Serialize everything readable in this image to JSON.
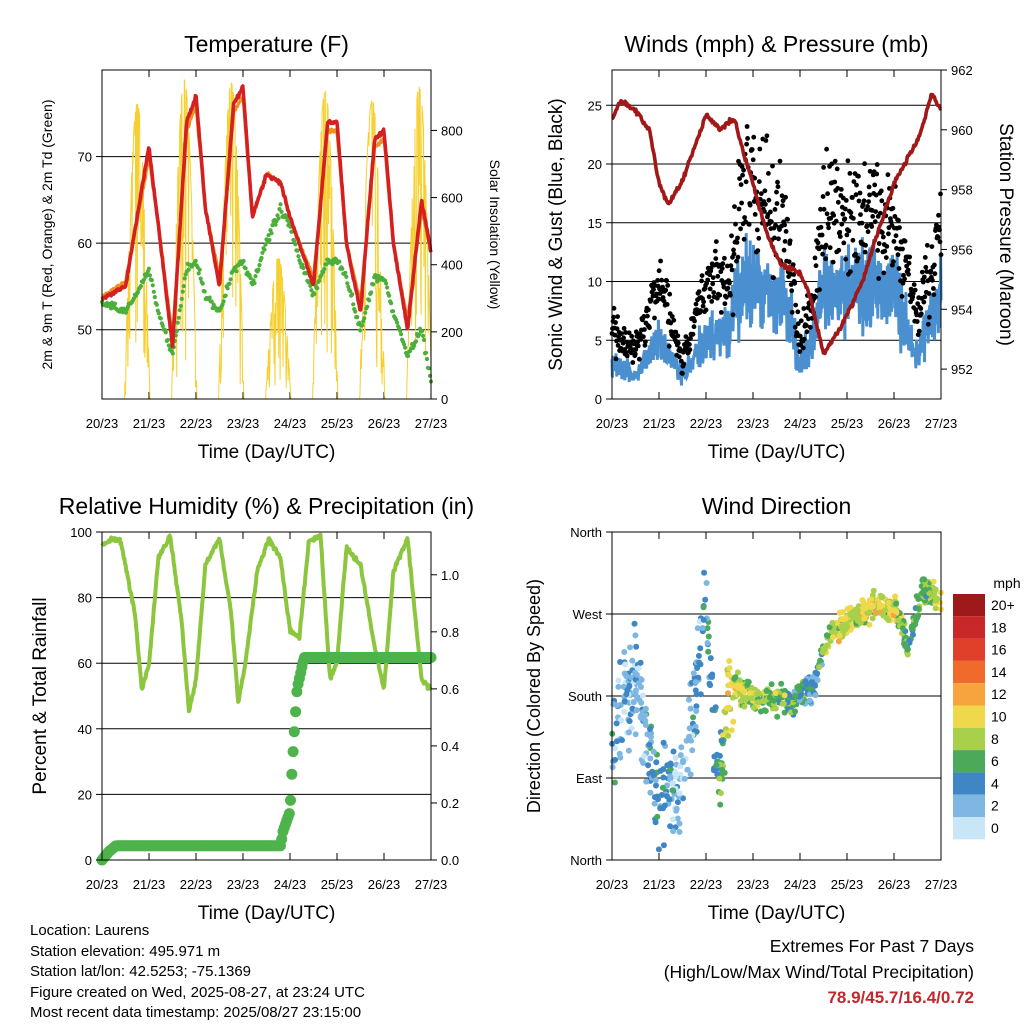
{
  "time_ticks": [
    "20/23",
    "21/23",
    "22/23",
    "23/23",
    "24/23",
    "25/23",
    "26/23",
    "27/23"
  ],
  "colors": {
    "temp2m": "#d42020",
    "temp9m": "#f09020",
    "dewpoint": "#4caf3a",
    "solar": "#f5d030",
    "wind": "#4a90d0",
    "gust": "#000000",
    "pressure": "#a01818",
    "rh": "#8cc63f",
    "precip": "#4db34a",
    "extremes": "#c0282d"
  },
  "info": {
    "location": "Location: Laurens",
    "elevation": "Station elevation: 495.971 m",
    "latlon": "Station lat/lon: 42.5253; -75.1369",
    "created": "Figure created on Wed, 2025-08-27, at 23:24 UTC",
    "latest": "Most recent data timestamp: 2025/08/27 23:15:00"
  },
  "extremes": {
    "title": "Extremes For Past 7 Days",
    "subtitle": "(High/Low/Max Wind/Total Precipitation)",
    "values": "78.9/45.7/16.4/0.72"
  },
  "chart_data": [
    {
      "type": "line",
      "title": "Temperature (F)",
      "xlabel": "Time (Day/UTC)",
      "ylabel": "2m & 9m T (Red, Orange) & 2m Td (Green)",
      "ylabel_right": "Solar Insolation (Yellow)",
      "ylim": [
        42,
        80
      ],
      "yticks": [
        50,
        60,
        70
      ],
      "ylim_right": [
        0,
        980
      ],
      "yticks_right": [
        0,
        200,
        400,
        600,
        800
      ],
      "x_days": [
        0,
        0.5,
        0.9,
        1.0,
        1.2,
        1.5,
        1.8,
        2.0,
        2.2,
        2.5,
        2.8,
        3.0,
        3.2,
        3.5,
        3.8,
        4.0,
        4.2,
        4.5,
        4.8,
        5.0,
        5.2,
        5.5,
        5.8,
        6.0,
        6.2,
        6.5,
        6.8,
        7.0
      ],
      "series": [
        {
          "name": "2m T",
          "values": [
            53.5,
            55,
            68,
            71,
            62,
            48,
            74,
            77,
            64,
            55,
            76,
            78,
            63,
            68,
            67,
            63,
            60,
            55,
            74,
            74,
            60,
            52,
            72,
            73,
            60,
            50,
            65,
            59
          ]
        },
        {
          "name": "9m T",
          "values": [
            53.8,
            55.5,
            67,
            70,
            62,
            49,
            73,
            76,
            64,
            56,
            75,
            77,
            63,
            68,
            67,
            63,
            60,
            56,
            73,
            73,
            60,
            53,
            71,
            72,
            60,
            51,
            64,
            59
          ]
        },
        {
          "name": "2m Td",
          "values": [
            53,
            52,
            56,
            57,
            52,
            47,
            57,
            58,
            54,
            52,
            57,
            58,
            55,
            60,
            64,
            62,
            58,
            54,
            58,
            58,
            56,
            50,
            56,
            56,
            52,
            47,
            50,
            44
          ]
        }
      ],
      "solar": {
        "days": [
          0.75,
          1.75,
          2.75,
          3.75,
          4.75,
          5.75,
          6.75
        ],
        "peaks": [
          880,
          950,
          940,
          420,
          920,
          890,
          930
        ]
      }
    },
    {
      "type": "scatter",
      "title": "Winds (mph) & Pressure (mb)",
      "xlabel": "Time (Day/UTC)",
      "ylabel": "Sonic Wind & Gust (Blue, Black)",
      "ylabel_right": "Station Pressure (Maroon)",
      "ylim": [
        0,
        28
      ],
      "yticks": [
        0,
        5,
        10,
        15,
        20,
        25
      ],
      "ylim_right": [
        951,
        962
      ],
      "yticks_right": [
        952,
        954,
        956,
        958,
        960,
        962
      ],
      "wind_days": [
        0,
        0.5,
        1.0,
        1.5,
        2.0,
        2.5,
        2.8,
        3.0,
        3.5,
        3.8,
        4.0,
        4.3,
        4.5,
        5.0,
        5.5,
        6.0,
        6.5,
        7.0
      ],
      "wind": [
        3,
        2,
        5,
        2,
        5,
        6,
        10,
        10,
        9,
        7,
        3,
        5,
        10,
        9,
        10,
        9,
        4,
        9
      ],
      "gust": [
        6,
        4,
        10,
        3,
        10,
        10,
        19,
        18,
        16,
        12,
        5,
        9,
        16,
        15,
        16,
        15,
        7,
        14
      ],
      "pressure_days": [
        0,
        0.2,
        0.5,
        0.8,
        1.0,
        1.2,
        1.5,
        2.0,
        2.3,
        2.6,
        2.8,
        3.0,
        3.3,
        3.6,
        4.0,
        4.2,
        4.5,
        4.9,
        5.3,
        5.7,
        6.0,
        6.2,
        6.5,
        6.8,
        7.0
      ],
      "pressure": [
        960.3,
        961,
        960.6,
        960.0,
        958.2,
        957.5,
        958.3,
        960.5,
        960.0,
        960.4,
        959.2,
        958.2,
        956.5,
        955.5,
        955.2,
        954.5,
        952.5,
        953.5,
        954.8,
        956.8,
        958.2,
        958.8,
        959.6,
        961.2,
        960.7
      ]
    },
    {
      "type": "line",
      "title": "Relative Humidity (%) & Precipitation (in)",
      "xlabel": "Time (Day/UTC)",
      "ylabel": "Percent & Total Rainfall",
      "ylim": [
        0,
        100
      ],
      "yticks": [
        0,
        20,
        40,
        60,
        80,
        100
      ],
      "ylim_right": [
        0,
        1.15
      ],
      "yticks_right": [
        0.0,
        0.2,
        0.4,
        0.6,
        0.8,
        1.0
      ],
      "yticklabels_right": [
        "0.0",
        "0.2",
        "0.4",
        "0.6",
        "0.8",
        "1.0"
      ],
      "rh_days": [
        0,
        0.2,
        0.4,
        0.7,
        0.85,
        1.0,
        1.2,
        1.45,
        1.7,
        1.85,
        2.0,
        2.2,
        2.5,
        2.75,
        2.9,
        3.05,
        3.3,
        3.55,
        3.8,
        4.0,
        4.2,
        4.4,
        4.65,
        4.85,
        5.0,
        5.2,
        5.5,
        5.8,
        6.0,
        6.2,
        6.5,
        6.8,
        7.0
      ],
      "rh": [
        96,
        98,
        97,
        75,
        52,
        60,
        92,
        99,
        72,
        45,
        55,
        90,
        98,
        75,
        48,
        60,
        88,
        98,
        92,
        70,
        68,
        97,
        99,
        55,
        60,
        95,
        90,
        65,
        52,
        88,
        98,
        55,
        52
      ],
      "precip_days": [
        0,
        0.15,
        0.3,
        3.8,
        3.85,
        4.0,
        4.05,
        4.15,
        4.3,
        7.0
      ],
      "precip": [
        0,
        0.03,
        0.05,
        0.05,
        0.1,
        0.17,
        0.34,
        0.6,
        0.71,
        0.71
      ]
    },
    {
      "type": "scatter",
      "title": "Wind Direction",
      "xlabel": "Time (Day/UTC)",
      "ylabel": "Direction (Colored By Speed)",
      "ylim": [
        0,
        360
      ],
      "yticklabels": [
        "North",
        "East",
        "South",
        "West",
        "North"
      ],
      "colorbar": {
        "unit": "mph",
        "labels": [
          "20+",
          "18",
          "16",
          "14",
          "12",
          "10",
          "8",
          "6",
          "4",
          "2",
          "0"
        ],
        "colors": [
          "#9e1a1a",
          "#c82828",
          "#e0402a",
          "#f06a2c",
          "#f7a33e",
          "#f0d84c",
          "#a8d04a",
          "#4aaa5a",
          "#3f86c5",
          "#7eb8e2",
          "#c8e6f6"
        ]
      },
      "dir_days": [
        0,
        0.5,
        1.0,
        1.5,
        2.0,
        2.3,
        2.5,
        3.0,
        3.5,
        4.0,
        4.3,
        4.6,
        5.0,
        5.5,
        6.0,
        6.3,
        6.6,
        7.0
      ],
      "dir": [
        130,
        200,
        60,
        80,
        270,
        80,
        190,
        180,
        175,
        180,
        190,
        250,
        260,
        275,
        280,
        230,
        300,
        280
      ],
      "dir_speed": [
        3,
        2,
        4,
        2,
        4,
        5,
        10,
        8,
        7,
        5,
        3,
        8,
        9,
        9,
        10,
        5,
        7,
        9
      ]
    }
  ]
}
